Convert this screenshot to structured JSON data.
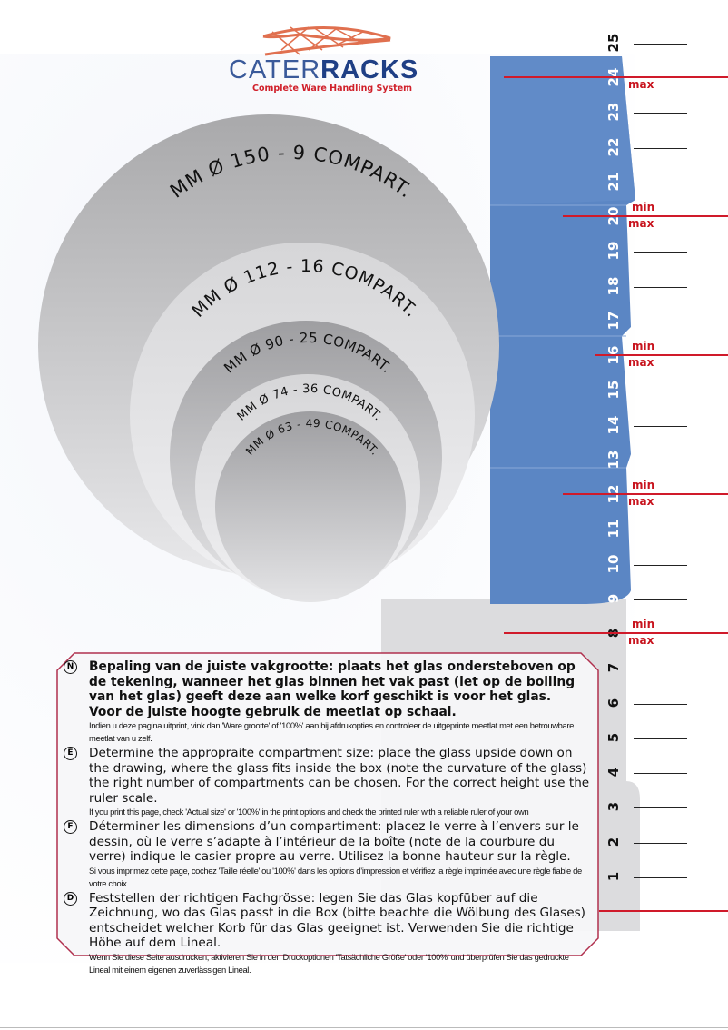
{
  "logo": {
    "name_part1": "Cater",
    "name_part2": "Racks",
    "tagline": "Complete Ware Handling System"
  },
  "circles": [
    {
      "label": "MM  Ø 150 - 9 COMPART."
    },
    {
      "label": "MM  Ø 112 - 16 COMPART."
    },
    {
      "label": "MM  Ø 90 - 25 COMPART."
    },
    {
      "label": "MM  Ø 74 - 36 COMPART."
    },
    {
      "label": "MM  Ø 63 - 49 COMPART."
    }
  ],
  "ruler": {
    "numbers": [
      "1",
      "2",
      "3",
      "4",
      "5",
      "6",
      "7",
      "8",
      "9",
      "10",
      "11",
      "12",
      "13",
      "14",
      "15",
      "16",
      "17",
      "18",
      "19",
      "20",
      "21",
      "22",
      "23",
      "24",
      "25"
    ],
    "marks": [
      {
        "at": 24,
        "min": "",
        "max": "max"
      },
      {
        "at": 20,
        "min": "min",
        "max": "max"
      },
      {
        "at": 16,
        "min": "min",
        "max": "max"
      },
      {
        "at": 12,
        "min": "min",
        "max": "max"
      },
      {
        "at": 8,
        "min": "min",
        "max": "max"
      },
      {
        "at": 0,
        "min": "",
        "max": ""
      }
    ],
    "accent": "#d01a2a",
    "rack_color": "#5b86c4"
  },
  "instructions": [
    {
      "marker": "N",
      "main": "Bepaling van de juiste vakgrootte: plaats het glas ondersteboven op de tekening, wanneer het glas binnen het vak past (let op de bolling van het glas) geeft deze aan welke korf geschikt is voor het glas.",
      "main2": "Voor de juiste hoogte gebruik de meetlat op schaal.",
      "note": "Indien u deze pagina uitprint, vink dan 'Ware grootte' of '100%' aan bij afdrukopties en controleer de uitgeprinte meetlat met een betrouwbare meetlat van u zelf."
    },
    {
      "marker": "E",
      "main": "Determine the appropraite compartment size: place the glass upside down on the drawing, where the glass fits inside the box (note the curvature of the glass) the right number of compartments can be chosen. For the correct height use the ruler scale.",
      "note": "If you print this page, check 'Actual size' or '100%' in the print options and check the printed ruler with a reliable ruler of your own"
    },
    {
      "marker": "F",
      "main": "Déterminer les dimensions d’un compartiment: placez le verre à l’envers sur le dessin, où le verre s’adapte à l’intérieur de la boîte (note de la courbure du verre) indique le casier propre au verre. Utilisez la bonne hauteur sur la règle.",
      "note": "Si vous imprimez cette page, cochez 'Taille réelle' ou '100%' dans les options d’impression et vérifiez la règle imprimée avec une règle fiable de votre choix"
    },
    {
      "marker": "D",
      "main": "Feststellen der richtigen Fachgrösse: legen Sie das Glas kopfüber auf die Zeichnung, wo das Glas passt in die Box (bitte beachte die Wölbung des Glases) entscheidet welcher Korb für das Glas geeignet ist. Verwenden Sie die richtige Höhe auf dem Lineal.",
      "note": "Wenn Sie diese Seite ausdrucken, aktivieren Sie in den Druckoptionen 'Tatsächliche Größe' oder '100%' und überprüfen Sie das gedruckte Lineal mit einem eigenen zuverlässigen Lineal."
    }
  ]
}
